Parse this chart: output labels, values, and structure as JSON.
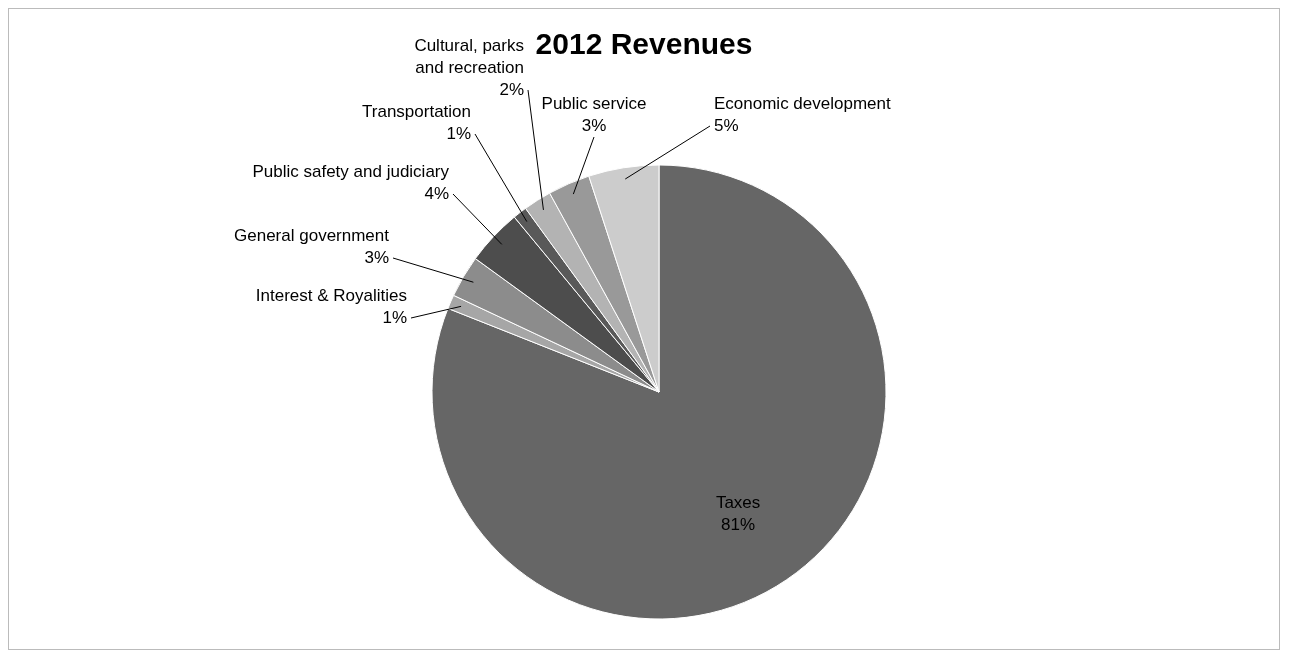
{
  "chart_data": {
    "type": "pie",
    "title": "2012 Revenues",
    "categories": [
      "Taxes",
      "Interest & Royalities",
      "General government",
      "Public safety and judiciary",
      "Transportation",
      "Cultural, parks and recreation",
      "Public service",
      "Economic development"
    ],
    "values": [
      81,
      1,
      3,
      4,
      1,
      2,
      3,
      5
    ],
    "value_labels": [
      "81%",
      "1%",
      "3%",
      "4%",
      "1%",
      "2%",
      "3%",
      "5%"
    ],
    "colors": [
      "#666666",
      "#a6a6a6",
      "#8c8c8c",
      "#4d4d4d",
      "#595959",
      "#b3b3b3",
      "#999999",
      "#cccccc"
    ],
    "legend": false
  }
}
